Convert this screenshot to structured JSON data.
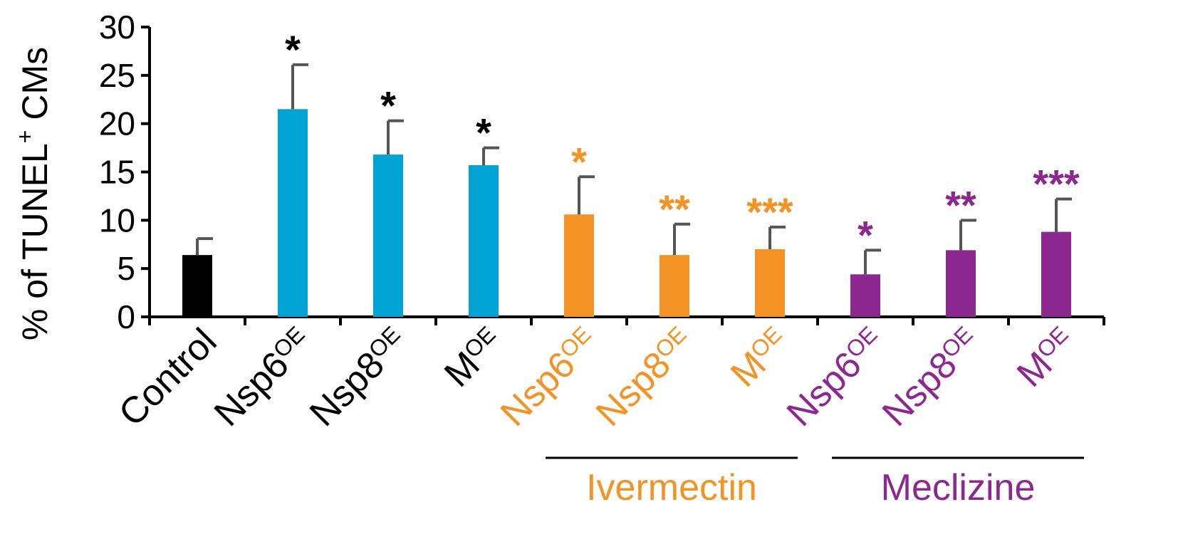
{
  "chart_data": {
    "type": "bar",
    "ylabel": "% of TUNEL",
    "ylabel_sup": "+",
    "ylabel_suffix": " CMs",
    "ylim": [
      0,
      30
    ],
    "yticks": [
      "0",
      "5",
      "10",
      "15",
      "20",
      "25",
      "30"
    ],
    "categories": [
      {
        "name": "Control",
        "sup": ""
      },
      {
        "name": "Nsp6",
        "sup": "OE"
      },
      {
        "name": "Nsp8",
        "sup": "OE"
      },
      {
        "name": "M",
        "sup": "OE"
      },
      {
        "name": "Nsp6",
        "sup": "OE"
      },
      {
        "name": "Nsp8",
        "sup": "OE"
      },
      {
        "name": "M",
        "sup": "OE"
      },
      {
        "name": "Nsp6",
        "sup": "OE"
      },
      {
        "name": "Nsp8",
        "sup": "OE"
      },
      {
        "name": "M",
        "sup": "OE"
      }
    ],
    "values": [
      6.4,
      21.5,
      16.8,
      15.7,
      10.6,
      6.4,
      7.0,
      4.4,
      6.9,
      8.8
    ],
    "errors": [
      1.7,
      4.6,
      3.5,
      1.8,
      3.9,
      3.2,
      2.3,
      2.5,
      3.1,
      3.4
    ],
    "significance": [
      "",
      "*",
      "*",
      "*",
      "*",
      "**",
      "***",
      "*",
      "**",
      "***"
    ],
    "bar_colors": [
      "#000000",
      "#00a3d4",
      "#00a3d4",
      "#00a3d4",
      "#f39325",
      "#f39325",
      "#f39325",
      "#8e2891",
      "#8e2891",
      "#8e2891"
    ],
    "label_colors": [
      "#000000",
      "#000000",
      "#000000",
      "#000000",
      "#f39325",
      "#f39325",
      "#f39325",
      "#8e2891",
      "#8e2891",
      "#8e2891"
    ],
    "groups": [
      {
        "label": "Ivermectin",
        "from": 4,
        "to": 6,
        "color": "#f39325"
      },
      {
        "label": "Meclizine",
        "from": 7,
        "to": 9,
        "color": "#8e2891"
      }
    ],
    "error_bar_color": "#555555"
  }
}
